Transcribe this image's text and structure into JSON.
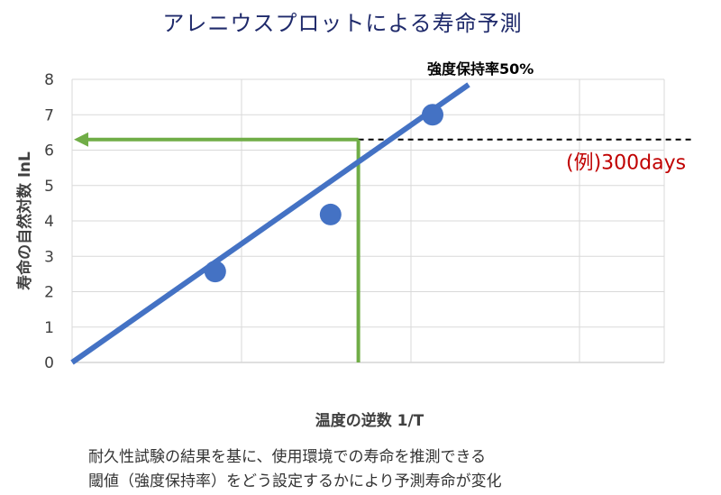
{
  "title": "アレニウスプロットによる寿命予測",
  "chart_data": {
    "type": "line",
    "xlabel": "温度の逆数 1/T",
    "ylabel": "寿命の自然対数 lnL",
    "ylim": [
      0,
      8
    ],
    "yticks": [
      "0",
      "1",
      "2",
      "3",
      "4",
      "5",
      "6",
      "7",
      "8"
    ],
    "grid": true,
    "series": [
      {
        "name": "強度保持率50%",
        "color": "#4472c4",
        "points": [
          [
            0.397,
            2.57
          ],
          [
            0.717,
            4.18
          ],
          [
            1.0,
            7.0
          ]
        ],
        "fit_line": [
          [
            0.0,
            0.0
          ],
          [
            1.1,
            7.85
          ]
        ]
      }
    ],
    "annotations": {
      "threshold_y": 6.3,
      "threshold_x": 0.794,
      "example_label": "(例)300days",
      "arrow_color": "#70ad47",
      "example_color": "#c00000"
    }
  },
  "caption": {
    "line1": "耐久性試験の結果を基に、使用環境での寿命を推測できる",
    "line2": "閾値（強度保持率）をどう設定するかにより予測寿命が変化"
  }
}
